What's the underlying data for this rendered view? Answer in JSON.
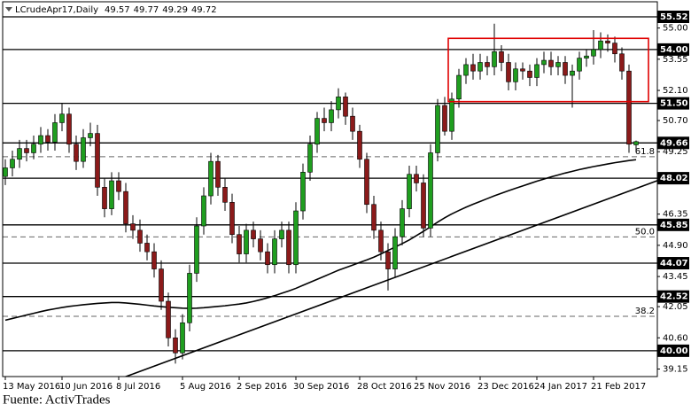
{
  "chart_data": {
    "type": "candlestick",
    "title": "LCrudeApr17,Daily",
    "categories": [
      "13 May 2016",
      null,
      null,
      null,
      null,
      null,
      null,
      null,
      "10 Jun 2016",
      null,
      null,
      null,
      null,
      null,
      null,
      null,
      "8 Jul 2016",
      null,
      null,
      null,
      null,
      null,
      null,
      null,
      null,
      "5 Aug 2016",
      null,
      null,
      null,
      null,
      null,
      null,
      null,
      "2 Sep 2016",
      null,
      null,
      null,
      null,
      null,
      null,
      null,
      "30 Sep 2016",
      null,
      null,
      null,
      null,
      null,
      null,
      null,
      null,
      "28 Oct 2016",
      null,
      null,
      null,
      null,
      null,
      null,
      null,
      "25 Nov 2016",
      null,
      null,
      null,
      null,
      null,
      null,
      null,
      null,
      "23 Dec 2016",
      null,
      null,
      null,
      null,
      null,
      null,
      null,
      "24 Jan 2017",
      null,
      null,
      null,
      null,
      null,
      null,
      null,
      "21 Feb 2017",
      null,
      null,
      null,
      null,
      null,
      null
    ],
    "open": [
      48.1,
      48.5,
      48.9,
      49.4,
      49.2,
      49.6,
      50.0,
      49.7,
      50.6,
      51.0,
      49.6,
      48.8,
      49.9,
      50.1,
      47.6,
      46.6,
      47.9,
      47.4,
      45.9,
      45.6,
      45.0,
      44.6,
      43.8,
      42.3,
      40.6,
      39.9,
      41.3,
      43.6,
      45.8,
      47.2,
      48.8,
      47.6,
      46.9,
      45.4,
      44.5,
      45.6,
      45.2,
      44.6,
      44.0,
      45.2,
      45.6,
      44.0,
      46.5,
      48.3,
      49.6,
      50.8,
      50.6,
      51.2,
      51.8,
      50.9,
      50.2,
      48.9,
      46.8,
      45.6,
      44.6,
      43.8,
      45.3,
      46.6,
      48.2,
      47.8,
      45.7,
      49.2,
      51.4,
      50.2,
      51.7,
      52.8,
      53.3,
      53.0,
      53.4,
      53.2,
      53.9,
      53.4,
      52.5,
      53.1,
      53.0,
      52.7,
      53.3,
      53.5,
      53.2,
      53.4,
      52.8,
      53.0,
      53.6,
      53.7,
      54.0,
      54.4,
      54.3,
      53.8,
      53.0,
      49.57
    ],
    "high": [
      48.9,
      49.3,
      49.8,
      49.8,
      50.0,
      50.4,
      50.3,
      51.0,
      51.5,
      51.3,
      50.0,
      50.3,
      50.6,
      50.5,
      48.0,
      48.3,
      48.3,
      47.8,
      46.3,
      46.1,
      45.4,
      45.0,
      44.2,
      42.7,
      41.0,
      41.7,
      44.0,
      46.2,
      47.6,
      49.2,
      49.1,
      48.0,
      47.3,
      45.8,
      45.9,
      46.0,
      45.6,
      45.0,
      45.6,
      46.0,
      46.0,
      46.9,
      48.7,
      50.0,
      51.1,
      51.3,
      51.6,
      52.2,
      52.0,
      51.3,
      50.5,
      49.2,
      47.2,
      46.0,
      45.0,
      45.7,
      47.0,
      48.6,
      48.6,
      48.2,
      49.6,
      51.7,
      51.8,
      52.0,
      53.1,
      53.6,
      53.8,
      53.8,
      53.7,
      55.2,
      54.2,
      53.8,
      53.4,
      53.4,
      53.3,
      53.6,
      53.9,
      53.9,
      53.7,
      53.7,
      53.3,
      53.9,
      54.0,
      54.9,
      54.8,
      54.7,
      54.6,
      54.1,
      53.3,
      49.77
    ],
    "low": [
      47.7,
      48.1,
      48.5,
      48.8,
      48.9,
      49.2,
      49.3,
      49.3,
      50.2,
      49.2,
      48.4,
      48.5,
      49.5,
      47.2,
      46.2,
      46.3,
      47.0,
      45.5,
      45.2,
      44.6,
      44.2,
      43.4,
      41.9,
      40.2,
      39.4,
      39.6,
      40.9,
      43.2,
      45.4,
      46.8,
      47.2,
      46.5,
      45.0,
      44.1,
      44.1,
      44.8,
      44.2,
      43.6,
      43.6,
      44.8,
      43.6,
      43.6,
      46.1,
      47.9,
      49.2,
      50.2,
      50.2,
      50.8,
      50.5,
      49.8,
      48.5,
      46.4,
      45.2,
      44.2,
      42.8,
      43.4,
      44.9,
      46.2,
      47.4,
      45.3,
      45.3,
      48.8,
      50.0,
      49.8,
      51.3,
      52.4,
      52.6,
      52.6,
      52.8,
      52.8,
      53.0,
      52.1,
      52.1,
      52.6,
      52.3,
      52.3,
      52.9,
      52.8,
      52.8,
      52.4,
      51.3,
      52.6,
      53.2,
      53.3,
      53.6,
      53.9,
      53.4,
      52.6,
      49.2,
      49.29
    ],
    "close": [
      48.5,
      48.9,
      49.4,
      49.2,
      49.6,
      50.0,
      49.7,
      50.6,
      51.0,
      49.6,
      48.8,
      49.9,
      50.1,
      47.6,
      46.6,
      47.9,
      47.4,
      45.9,
      45.6,
      45.0,
      44.6,
      43.8,
      42.3,
      40.6,
      39.9,
      41.3,
      43.6,
      45.8,
      47.2,
      48.8,
      47.6,
      46.9,
      45.4,
      44.5,
      45.6,
      45.2,
      44.6,
      44.0,
      45.2,
      45.6,
      44.0,
      46.5,
      48.3,
      49.6,
      50.8,
      50.6,
      51.2,
      51.8,
      50.9,
      50.2,
      48.9,
      46.8,
      45.6,
      44.6,
      43.8,
      45.3,
      46.6,
      48.2,
      47.8,
      45.7,
      49.2,
      51.4,
      50.2,
      51.7,
      52.8,
      53.3,
      53.0,
      53.4,
      53.2,
      53.9,
      53.4,
      52.5,
      53.1,
      53.0,
      52.7,
      53.3,
      53.5,
      53.2,
      53.4,
      52.8,
      53.0,
      53.6,
      53.7,
      54.0,
      54.4,
      54.3,
      53.8,
      53.0,
      49.6,
      49.72
    ],
    "bull_color": "#1f9e1f",
    "bear_color": "#8b1a1a",
    "moving_average": {
      "color": "#000000",
      "values": [
        41.42,
        41.5,
        41.58,
        41.66,
        41.74,
        41.82,
        41.89,
        41.95,
        42.01,
        42.06,
        42.1,
        42.14,
        42.17,
        42.2,
        42.22,
        42.24,
        42.24,
        42.22,
        42.19,
        42.16,
        42.12,
        42.08,
        42.05,
        42.02,
        42.0,
        41.98,
        41.97,
        41.98,
        42.0,
        42.03,
        42.06,
        42.09,
        42.13,
        42.17,
        42.22,
        42.29,
        42.37,
        42.46,
        42.56,
        42.67,
        42.78,
        42.9,
        43.04,
        43.18,
        43.32,
        43.46,
        43.6,
        43.74,
        43.86,
        43.98,
        44.1,
        44.22,
        44.35,
        44.5,
        44.66,
        44.82,
        44.98,
        45.15,
        45.35,
        45.55,
        45.76,
        45.98,
        46.18,
        46.36,
        46.52,
        46.67,
        46.81,
        46.94,
        47.07,
        47.2,
        47.32,
        47.44,
        47.55,
        47.66,
        47.77,
        47.88,
        47.98,
        48.08,
        48.17,
        48.26,
        48.34,
        48.42,
        48.49,
        48.56,
        48.62,
        48.68,
        48.74,
        48.79,
        48.84,
        48.88
      ]
    },
    "trendline": {
      "color": "#000000",
      "from": 18,
      "to": 89,
      "values": [
        38.92,
        47.54
      ]
    },
    "range_box": {
      "color": "#e00000",
      "from": 63,
      "to": 89,
      "low": 51.58,
      "high": 54.52
    },
    "levels": [
      55.52,
      {
        "value": 54,
        "label": "54.00"
      },
      {
        "value": 51.5,
        "label": "51.50"
      },
      49.66,
      48.02,
      45.85,
      44.07,
      42.52,
      {
        "value": 40,
        "label": "40.00"
      }
    ],
    "fib_levels": [
      {
        "name": "61.8",
        "value": 49.02
      },
      {
        "name": "50.0",
        "value": 45.29
      },
      {
        "name": "38.2",
        "value": 41.6
      }
    ],
    "ylim": [
      38.8,
      56.22
    ],
    "yticks": [
      {
        "value": 55,
        "label": "55.00"
      },
      53.55,
      {
        "value": 52.1,
        "label": "52.10"
      },
      {
        "value": 50.7,
        "label": "50.70"
      },
      49.25,
      46.35,
      {
        "value": 44.9,
        "label": "44.90"
      },
      43.45,
      42.05,
      {
        "value": 40.6,
        "label": "40.60"
      },
      39.15
    ]
  },
  "source": "Fuente: ActivTrades"
}
